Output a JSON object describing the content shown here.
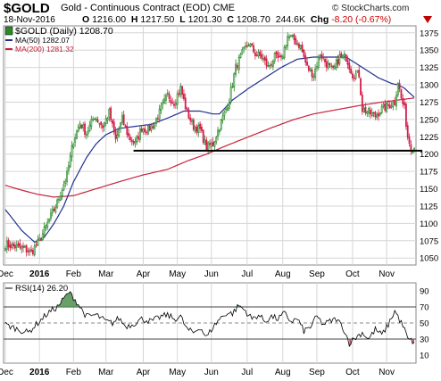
{
  "header": {
    "symbol": "$GOLD",
    "description": "Gold - Continuous Contract (EOD)  CME",
    "copyright": "© StockCharts.com",
    "date": "18-Nov-2016",
    "open_label": "O",
    "open": "1216.00",
    "high_label": "H",
    "high": "1217.50",
    "low_label": "L",
    "low": "1201.30",
    "close_label": "C",
    "close": "1208.70",
    "volume": "244.6K",
    "chg_label": "Chg",
    "chg": "-8.20 (-0.67%)"
  },
  "colors": {
    "up": "#2a8a2a",
    "down": "#d4204a",
    "ma50": "#1f2f8f",
    "ma200": "#c8203a",
    "support": "#000000",
    "rsi_line": "#000000",
    "rsi_fill_high": "#4f8f4f",
    "rsi_fill_low": "#c0304a",
    "grid": "#d6d6d6"
  },
  "chart_data": [
    {
      "type": "candlestick",
      "legend": [
        {
          "label": "$GOLD (Daily) 1208.70",
          "marker": "candle"
        },
        {
          "label": "MA(50) 1282.07",
          "color": "#1f2f8f"
        },
        {
          "label": "MA(200) 1281.32",
          "color": "#c8203a"
        }
      ],
      "ylim": [
        1040,
        1385
      ],
      "y_ticks": [
        1050,
        1075,
        1100,
        1125,
        1150,
        1175,
        1200,
        1225,
        1250,
        1275,
        1300,
        1325,
        1350,
        1375
      ],
      "x_ticks": [
        "Dec",
        "2016",
        "Feb",
        "Mar",
        "Apr",
        "May",
        "Jun",
        "Jul",
        "Aug",
        "Sep",
        "Oct",
        "Nov"
      ],
      "x_tick_positions": [
        0,
        21,
        42,
        62,
        85,
        106,
        127,
        149,
        171,
        192,
        214,
        235
      ],
      "support_level": 1205,
      "support_range": [
        79,
        257
      ],
      "close_anchors": [
        [
          0,
          1070
        ],
        [
          12,
          1063
        ],
        [
          16,
          1058
        ],
        [
          21,
          1075
        ],
        [
          26,
          1100
        ],
        [
          32,
          1130
        ],
        [
          38,
          1170
        ],
        [
          42,
          1220
        ],
        [
          46,
          1245
        ],
        [
          50,
          1230
        ],
        [
          55,
          1255
        ],
        [
          60,
          1240
        ],
        [
          64,
          1260
        ],
        [
          68,
          1220
        ],
        [
          72,
          1250
        ],
        [
          76,
          1225
        ],
        [
          80,
          1215
        ],
        [
          84,
          1238
        ],
        [
          88,
          1235
        ],
        [
          92,
          1245
        ],
        [
          96,
          1265
        ],
        [
          100,
          1285
        ],
        [
          104,
          1275
        ],
        [
          108,
          1295
        ],
        [
          112,
          1260
        ],
        [
          116,
          1240
        ],
        [
          120,
          1235
        ],
        [
          124,
          1210
        ],
        [
          128,
          1215
        ],
        [
          132,
          1240
        ],
        [
          136,
          1265
        ],
        [
          138,
          1280
        ],
        [
          142,
          1325
        ],
        [
          146,
          1345
        ],
        [
          150,
          1360
        ],
        [
          154,
          1345
        ],
        [
          158,
          1340
        ],
        [
          162,
          1325
        ],
        [
          166,
          1340
        ],
        [
          170,
          1335
        ],
        [
          174,
          1370
        ],
        [
          178,
          1365
        ],
        [
          182,
          1355
        ],
        [
          186,
          1325
        ],
        [
          190,
          1315
        ],
        [
          194,
          1345
        ],
        [
          198,
          1330
        ],
        [
          202,
          1320
        ],
        [
          206,
          1340
        ],
        [
          210,
          1340
        ],
        [
          214,
          1315
        ],
        [
          218,
          1315
        ],
        [
          220,
          1265
        ],
        [
          224,
          1260
        ],
        [
          228,
          1255
        ],
        [
          232,
          1265
        ],
        [
          236,
          1270
        ],
        [
          240,
          1275
        ],
        [
          242,
          1305
        ],
        [
          244,
          1280
        ],
        [
          246,
          1265
        ],
        [
          248,
          1225
        ],
        [
          250,
          1210
        ],
        [
          252,
          1208
        ]
      ],
      "ma50_anchors": [
        [
          0,
          1120
        ],
        [
          10,
          1090
        ],
        [
          18,
          1073
        ],
        [
          24,
          1080
        ],
        [
          30,
          1100
        ],
        [
          36,
          1125
        ],
        [
          42,
          1160
        ],
        [
          50,
          1195
        ],
        [
          56,
          1215
        ],
        [
          62,
          1228
        ],
        [
          70,
          1237
        ],
        [
          80,
          1240
        ],
        [
          90,
          1243
        ],
        [
          100,
          1252
        ],
        [
          110,
          1262
        ],
        [
          120,
          1262
        ],
        [
          128,
          1258
        ],
        [
          132,
          1258
        ],
        [
          140,
          1278
        ],
        [
          150,
          1295
        ],
        [
          160,
          1310
        ],
        [
          170,
          1325
        ],
        [
          180,
          1337
        ],
        [
          190,
          1340
        ],
        [
          200,
          1340
        ],
        [
          210,
          1340
        ],
        [
          220,
          1325
        ],
        [
          230,
          1310
        ],
        [
          238,
          1302
        ],
        [
          242,
          1300
        ],
        [
          246,
          1295
        ],
        [
          252,
          1282
        ]
      ],
      "ma200_anchors": [
        [
          0,
          1155
        ],
        [
          10,
          1148
        ],
        [
          20,
          1142
        ],
        [
          30,
          1138
        ],
        [
          42,
          1140
        ],
        [
          56,
          1150
        ],
        [
          70,
          1160
        ],
        [
          85,
          1170
        ],
        [
          100,
          1178
        ],
        [
          112,
          1190
        ],
        [
          124,
          1200
        ],
        [
          136,
          1212
        ],
        [
          150,
          1225
        ],
        [
          164,
          1238
        ],
        [
          178,
          1250
        ],
        [
          190,
          1258
        ],
        [
          204,
          1264
        ],
        [
          218,
          1270
        ],
        [
          232,
          1275
        ],
        [
          242,
          1278
        ],
        [
          252,
          1281
        ]
      ]
    },
    {
      "type": "line",
      "legend_label": "RSI(14) 26.20",
      "ylim": [
        0,
        100
      ],
      "y_ticks": [
        10,
        30,
        50,
        70,
        90
      ],
      "bands": [
        30,
        50,
        70
      ],
      "x_ticks": [
        "Dec",
        "2016",
        "Feb",
        "Mar",
        "Apr",
        "May",
        "Jun",
        "Jul",
        "Aug",
        "Sep",
        "Oct",
        "Nov"
      ],
      "rsi_anchors": [
        [
          0,
          48
        ],
        [
          8,
          42
        ],
        [
          14,
          38
        ],
        [
          20,
          50
        ],
        [
          26,
          62
        ],
        [
          32,
          70
        ],
        [
          36,
          80
        ],
        [
          39,
          88
        ],
        [
          42,
          82
        ],
        [
          46,
          70
        ],
        [
          50,
          58
        ],
        [
          56,
          60
        ],
        [
          62,
          52
        ],
        [
          66,
          50
        ],
        [
          70,
          56
        ],
        [
          74,
          46
        ],
        [
          78,
          48
        ],
        [
          84,
          55
        ],
        [
          90,
          52
        ],
        [
          96,
          58
        ],
        [
          100,
          60
        ],
        [
          104,
          55
        ],
        [
          108,
          58
        ],
        [
          112,
          42
        ],
        [
          116,
          38
        ],
        [
          120,
          45
        ],
        [
          124,
          32
        ],
        [
          128,
          45
        ],
        [
          132,
          55
        ],
        [
          136,
          62
        ],
        [
          140,
          62
        ],
        [
          144,
          72
        ],
        [
          148,
          65
        ],
        [
          152,
          55
        ],
        [
          156,
          60
        ],
        [
          160,
          52
        ],
        [
          164,
          58
        ],
        [
          168,
          55
        ],
        [
          172,
          62
        ],
        [
          176,
          52
        ],
        [
          180,
          55
        ],
        [
          184,
          40
        ],
        [
          188,
          45
        ],
        [
          192,
          58
        ],
        [
          196,
          48
        ],
        [
          200,
          52
        ],
        [
          204,
          55
        ],
        [
          208,
          45
        ],
        [
          212,
          25
        ],
        [
          216,
          32
        ],
        [
          220,
          38
        ],
        [
          224,
          30
        ],
        [
          228,
          42
        ],
        [
          232,
          35
        ],
        [
          236,
          48
        ],
        [
          240,
          65
        ],
        [
          242,
          58
        ],
        [
          246,
          42
        ],
        [
          248,
          30
        ],
        [
          252,
          26
        ]
      ],
      "last_value": 26.2
    }
  ]
}
